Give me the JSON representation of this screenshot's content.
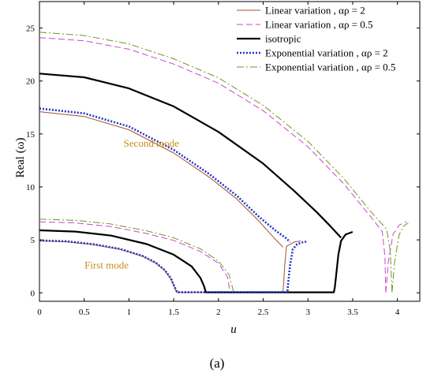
{
  "chart_data": {
    "type": "line",
    "title": "",
    "xlabel": "u",
    "ylabel": "Real (ω)",
    "xlim": [
      0,
      4.25
    ],
    "ylim": [
      -0.8,
      27.5
    ],
    "xticks": [
      0,
      0.5,
      1,
      1.5,
      2,
      2.5,
      3,
      3.5,
      4
    ],
    "xtick_labels": [
      "0",
      "0.5",
      "1",
      "1.5",
      "2",
      "2.5",
      "3",
      "3.5",
      "4"
    ],
    "yticks": [
      0,
      5,
      10,
      15,
      20,
      25
    ],
    "ytick_labels": [
      "0",
      "5",
      "10",
      "15",
      "20",
      "25"
    ],
    "grid": false,
    "legend_position": "top-right",
    "caption": "(a)",
    "annotations": [
      {
        "text": "Second mode",
        "x": 1.25,
        "y": 13.8
      },
      {
        "text": "First mode",
        "x": 0.75,
        "y": 2.3
      }
    ],
    "series": [
      {
        "name": "Linear variation , α_ρ = 2",
        "legend_label": "Linear variation , αρ = 2",
        "color": "#a0522d",
        "dash": "solid",
        "width": 1,
        "segments": [
          [
            [
              0,
              4.9
            ],
            [
              0.3,
              4.82
            ],
            [
              0.6,
              4.55
            ],
            [
              0.9,
              4.1
            ],
            [
              1.15,
              3.45
            ],
            [
              1.3,
              2.8
            ],
            [
              1.4,
              2.1
            ],
            [
              1.47,
              1.3
            ],
            [
              1.51,
              0.5
            ],
            [
              1.53,
              0.05
            ],
            [
              2.72,
              0.05
            ],
            [
              2.73,
              1.0
            ],
            [
              2.74,
              2.5
            ],
            [
              2.76,
              4.4
            ],
            [
              2.85,
              4.8
            ],
            [
              2.92,
              4.9
            ]
          ],
          [
            [
              0,
              17.1
            ],
            [
              0.5,
              16.65
            ],
            [
              1.0,
              15.4
            ],
            [
              1.5,
              13.2
            ],
            [
              1.9,
              10.9
            ],
            [
              2.2,
              8.9
            ],
            [
              2.45,
              6.8
            ],
            [
              2.62,
              5.2
            ],
            [
              2.7,
              4.5
            ],
            [
              2.72,
              4.3
            ]
          ]
        ]
      },
      {
        "name": "Linear variation , α_ρ = 0.5",
        "legend_label": "Linear variation , αρ = 0.5",
        "color": "#cc44cc",
        "dash": "8,4",
        "width": 1,
        "segments": [
          [
            [
              0,
              6.7
            ],
            [
              0.4,
              6.6
            ],
            [
              0.8,
              6.25
            ],
            [
              1.2,
              5.6
            ],
            [
              1.5,
              4.95
            ],
            [
              1.8,
              3.9
            ],
            [
              2.0,
              2.8
            ],
            [
              2.1,
              1.5
            ],
            [
              2.13,
              0.05
            ]
          ],
          [
            [
              0,
              24.1
            ],
            [
              0.5,
              23.8
            ],
            [
              1.0,
              23.0
            ],
            [
              1.5,
              21.6
            ],
            [
              2.0,
              19.8
            ],
            [
              2.5,
              17.2
            ],
            [
              3.0,
              13.8
            ],
            [
              3.4,
              10.3
            ],
            [
              3.7,
              7.2
            ],
            [
              3.83,
              5.8
            ],
            [
              3.86,
              3.5
            ],
            [
              3.87,
              0.05
            ]
          ],
          [
            [
              3.87,
              0.05
            ],
            [
              3.9,
              3.0
            ],
            [
              3.95,
              5.5
            ],
            [
              4.02,
              6.4
            ],
            [
              4.1,
              6.7
            ]
          ]
        ]
      },
      {
        "name": "isotropic",
        "legend_label": "isotropic",
        "color": "#000000",
        "dash": "solid",
        "width": 2.2,
        "segments": [
          [
            [
              0,
              5.9
            ],
            [
              0.4,
              5.78
            ],
            [
              0.8,
              5.4
            ],
            [
              1.2,
              4.6
            ],
            [
              1.5,
              3.6
            ],
            [
              1.7,
              2.5
            ],
            [
              1.8,
              1.4
            ],
            [
              1.84,
              0.6
            ],
            [
              1.86,
              0.05
            ],
            [
              3.29,
              0.05
            ],
            [
              3.3,
              0.5
            ],
            [
              3.32,
              2.0
            ],
            [
              3.34,
              3.6
            ],
            [
              3.37,
              4.9
            ],
            [
              3.42,
              5.5
            ],
            [
              3.5,
              5.75
            ]
          ],
          [
            [
              0,
              20.7
            ],
            [
              0.5,
              20.35
            ],
            [
              1.0,
              19.3
            ],
            [
              1.5,
              17.6
            ],
            [
              2.0,
              15.2
            ],
            [
              2.5,
              12.2
            ],
            [
              2.85,
              9.6
            ],
            [
              3.1,
              7.6
            ],
            [
              3.25,
              6.3
            ],
            [
              3.37,
              5.2
            ]
          ]
        ]
      },
      {
        "name": "Exponential variation , α_ρ = 2",
        "legend_label": "Exponential variation , αρ = 2",
        "color": "#2233cc",
        "dash": "2,2",
        "width": 2.6,
        "segments": [
          [
            [
              0,
              4.95
            ],
            [
              0.3,
              4.87
            ],
            [
              0.6,
              4.6
            ],
            [
              0.9,
              4.15
            ],
            [
              1.15,
              3.5
            ],
            [
              1.3,
              2.85
            ],
            [
              1.4,
              2.15
            ],
            [
              1.47,
              1.35
            ],
            [
              1.51,
              0.55
            ],
            [
              1.54,
              0.05
            ],
            [
              2.77,
              0.05
            ],
            [
              2.78,
              1.0
            ],
            [
              2.8,
              2.6
            ],
            [
              2.83,
              4.1
            ],
            [
              2.88,
              4.6
            ],
            [
              2.95,
              4.8
            ],
            [
              3.0,
              4.85
            ]
          ],
          [
            [
              0,
              17.4
            ],
            [
              0.5,
              16.95
            ],
            [
              1.0,
              15.7
            ],
            [
              1.5,
              13.5
            ],
            [
              1.9,
              11.2
            ],
            [
              2.2,
              9.2
            ],
            [
              2.45,
              7.2
            ],
            [
              2.65,
              5.8
            ],
            [
              2.75,
              5.2
            ],
            [
              2.8,
              4.8
            ]
          ]
        ]
      },
      {
        "name": "Exponential variation , α_ρ = 0.5",
        "legend_label": "Exponential variation , αρ = 0.5",
        "color": "#6b9a1a",
        "dash": "9,3,2,3",
        "width": 1,
        "segments": [
          [
            [
              0,
              6.95
            ],
            [
              0.4,
              6.85
            ],
            [
              0.8,
              6.5
            ],
            [
              1.2,
              5.85
            ],
            [
              1.5,
              5.2
            ],
            [
              1.8,
              4.15
            ],
            [
              2.0,
              3.0
            ],
            [
              2.12,
              1.7
            ],
            [
              2.17,
              0.05
            ]
          ],
          [
            [
              0,
              24.6
            ],
            [
              0.5,
              24.3
            ],
            [
              1.0,
              23.5
            ],
            [
              1.5,
              22.1
            ],
            [
              2.0,
              20.3
            ],
            [
              2.5,
              17.7
            ],
            [
              3.0,
              14.3
            ],
            [
              3.4,
              10.8
            ],
            [
              3.7,
              7.7
            ],
            [
              3.88,
              6.0
            ],
            [
              3.92,
              4.0
            ],
            [
              3.94,
              0.05
            ]
          ],
          [
            [
              3.94,
              0.05
            ],
            [
              3.97,
              3.0
            ],
            [
              4.02,
              5.5
            ],
            [
              4.07,
              6.3
            ],
            [
              4.12,
              6.6
            ]
          ]
        ]
      }
    ]
  }
}
